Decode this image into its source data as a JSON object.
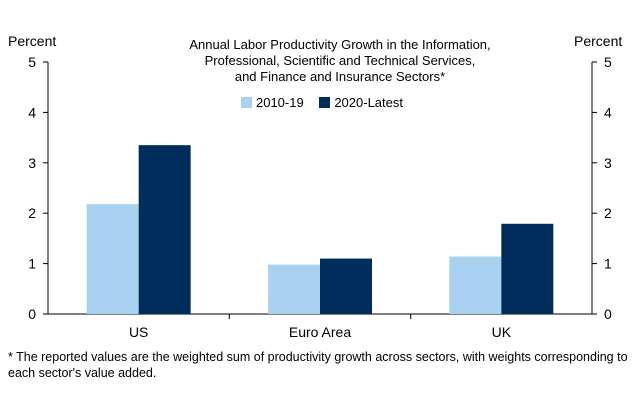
{
  "chart_data": {
    "type": "bar",
    "title_lines": [
      "Annual Labor Productivity Growth in the Information,",
      "Professional, Scientific and Technical Services,",
      "and Finance and Insurance Sectors*"
    ],
    "ylabel_left": "Percent",
    "ylabel_right": "Percent",
    "categories": [
      "US",
      "Euro Area",
      "UK"
    ],
    "series": [
      {
        "name": "2010-19",
        "color": "#a9d2f0",
        "values": [
          2.18,
          0.98,
          1.14
        ]
      },
      {
        "name": "2020-Latest",
        "color": "#002d5c",
        "values": [
          3.35,
          1.1,
          1.79
        ]
      }
    ],
    "ylim": [
      0,
      5
    ],
    "yticks": [
      0,
      1,
      2,
      3,
      4,
      5
    ],
    "grid": false,
    "legend_position": "top-center",
    "footnote": "* The reported values are the weighted sum of productivity growth across sectors, with weights corresponding to each sector's value added."
  }
}
